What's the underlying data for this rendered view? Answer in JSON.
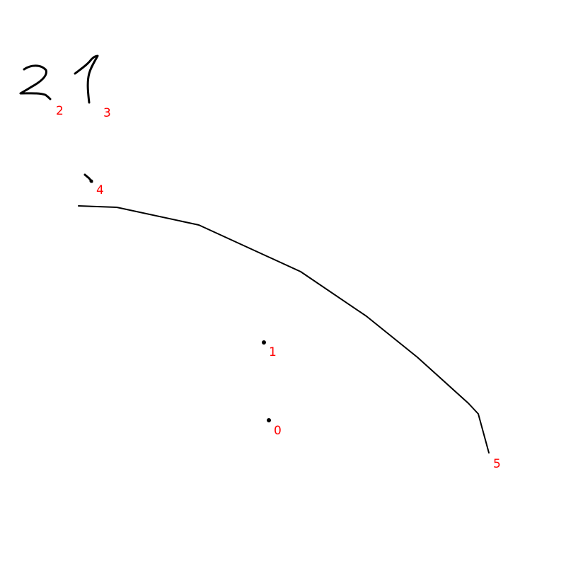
{
  "colors": {
    "ink": "#000000",
    "label": "#ff0000",
    "background": "#ffffff"
  },
  "strokes": [
    {
      "id": "stroke-0",
      "label": "0",
      "kind": "dot"
    },
    {
      "id": "stroke-1",
      "label": "1",
      "kind": "dot"
    },
    {
      "id": "stroke-2",
      "label": "2",
      "kind": "handwritten-digit",
      "glyph": "2"
    },
    {
      "id": "stroke-3",
      "label": "3",
      "kind": "handwritten-digit",
      "glyph": "1"
    },
    {
      "id": "stroke-4",
      "label": "4",
      "kind": "short-tick"
    },
    {
      "id": "stroke-5",
      "label": "5",
      "kind": "long-curve"
    }
  ]
}
